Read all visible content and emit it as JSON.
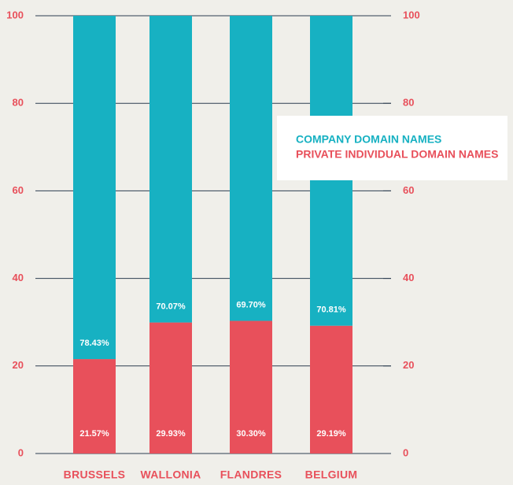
{
  "chart_data": {
    "type": "stacked_bar",
    "categories": [
      "BRUSSELS",
      "WALLONIA",
      "FLANDRES",
      "BELGIUM"
    ],
    "series": [
      {
        "name": "COMPANY DOMAIN NAMES",
        "color": "#17b1c2",
        "values": [
          78.43,
          70.07,
          69.7,
          70.81
        ],
        "value_labels": [
          "78.43%",
          "70.07%",
          "69.70%",
          "70.81%"
        ]
      },
      {
        "name": "PRIVATE INDIVIDUAL DOMAIN NAMES",
        "color": "#e8505b",
        "values": [
          21.57,
          29.93,
          30.3,
          29.19
        ],
        "value_labels": [
          "21.57%",
          "29.93%",
          "30.30%",
          "29.19%"
        ]
      }
    ],
    "ylim": [
      0,
      100
    ],
    "yticks": [
      0,
      20,
      40,
      60,
      80,
      100
    ],
    "y2lim": [
      0,
      100
    ],
    "y2ticks": [
      0,
      20,
      40,
      60,
      80,
      100
    ],
    "grid": true,
    "legend": "upper right"
  }
}
